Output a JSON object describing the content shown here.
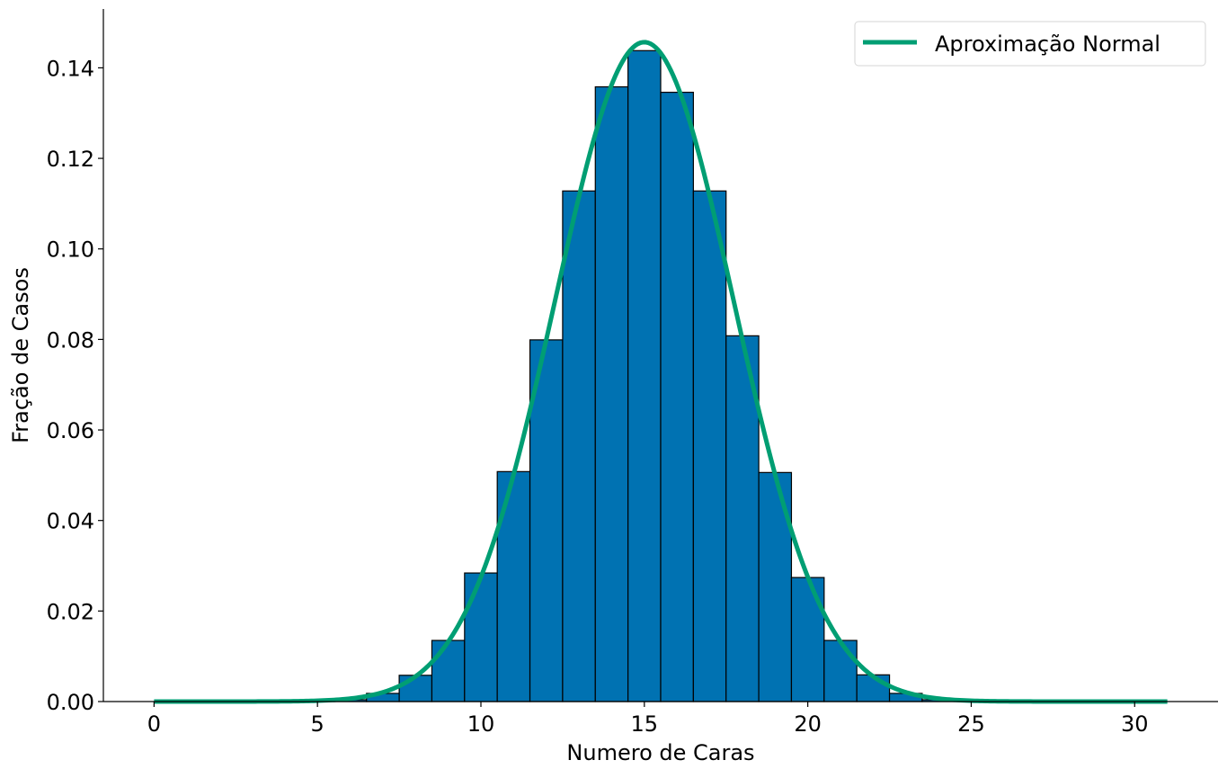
{
  "chart_data": {
    "type": "bar",
    "title": "",
    "xlabel": "Numero de Caras",
    "ylabel": "Fração de Casos",
    "xlim": [
      -1.55,
      32.55
    ],
    "ylim": [
      0,
      0.153
    ],
    "xticks": [
      0,
      5,
      10,
      15,
      20,
      25,
      30
    ],
    "xtick_labels": [
      "0",
      "5",
      "10",
      "15",
      "20",
      "25",
      "30"
    ],
    "yticks": [
      0,
      0.02,
      0.04,
      0.06,
      0.08,
      0.1,
      0.12,
      0.14
    ],
    "ytick_labels": [
      "0.00",
      "0.02",
      "0.04",
      "0.06",
      "0.08",
      "0.10",
      "0.12",
      "0.14"
    ],
    "grid": false,
    "legend_position": "top-right",
    "bars": {
      "x": [
        6,
        7,
        8,
        9,
        10,
        11,
        12,
        13,
        14,
        15,
        16,
        17,
        18,
        19,
        20,
        21,
        22,
        23,
        24
      ],
      "values": [
        0.0004,
        0.0018,
        0.0058,
        0.0135,
        0.0284,
        0.0508,
        0.0799,
        0.1128,
        0.1358,
        0.1438,
        0.1346,
        0.1128,
        0.0808,
        0.0506,
        0.0274,
        0.0135,
        0.0059,
        0.0018,
        0.0004
      ],
      "color": "#0072b2",
      "edgecolor": "#000000"
    },
    "series": [
      {
        "name": "Aproximação Normal",
        "type": "line",
        "mean": 15,
        "std": 2.7386,
        "x_range": [
          0,
          31
        ],
        "color": "#009e73"
      }
    ]
  }
}
